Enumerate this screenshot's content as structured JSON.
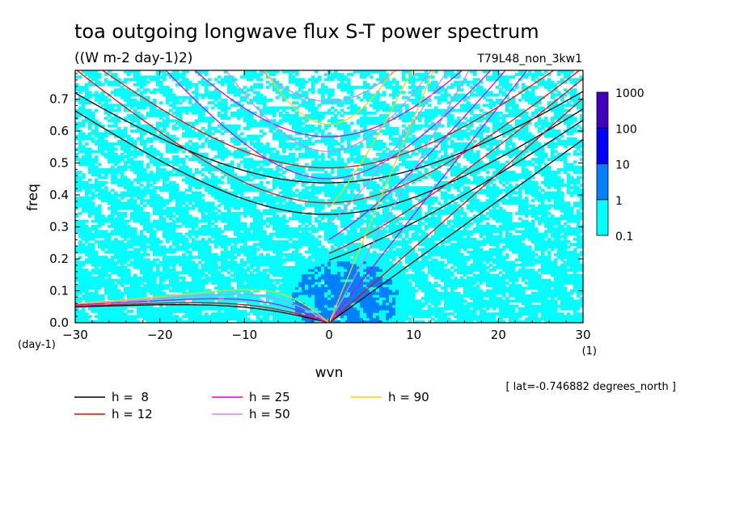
{
  "chart_data": {
    "type": "heatmap",
    "title": "toa outgoing longwave flux S-T power spectrum",
    "subtitle": "((W m-2 day-1)2)",
    "run_label": "T79L48_non_3kw1",
    "xlabel": "wvn",
    "ylabel": "freq",
    "x_unit": "(1)",
    "y_unit": "(day-1)",
    "xlim": [
      -30,
      30
    ],
    "ylim": [
      0,
      0.79
    ],
    "x_ticks": [
      -30,
      -20,
      -10,
      0,
      10,
      20,
      30
    ],
    "y_ticks": [
      0.0,
      0.1,
      0.2,
      0.3,
      0.4,
      0.5,
      0.6,
      0.7
    ],
    "colorbar": {
      "levels": [
        0.1,
        1,
        10,
        100,
        1000
      ],
      "colors": [
        "#00ffff",
        "#0080ff",
        "#0000ff",
        "#4000c0"
      ]
    },
    "annotation": "[ lat=-0.746882 degrees_north ]",
    "dispersion_curves": [
      {
        "label": "h =  8",
        "h": 8,
        "color": "#000000"
      },
      {
        "label": "h = 12",
        "h": 12,
        "color": "#ff0000"
      },
      {
        "label": "h = 25",
        "h": 25,
        "color": "#e000e0"
      },
      {
        "label": "h = 50",
        "h": 50,
        "color": "#e080e0"
      },
      {
        "label": "h = 90",
        "h": 90,
        "color": "#ffd000"
      }
    ]
  }
}
